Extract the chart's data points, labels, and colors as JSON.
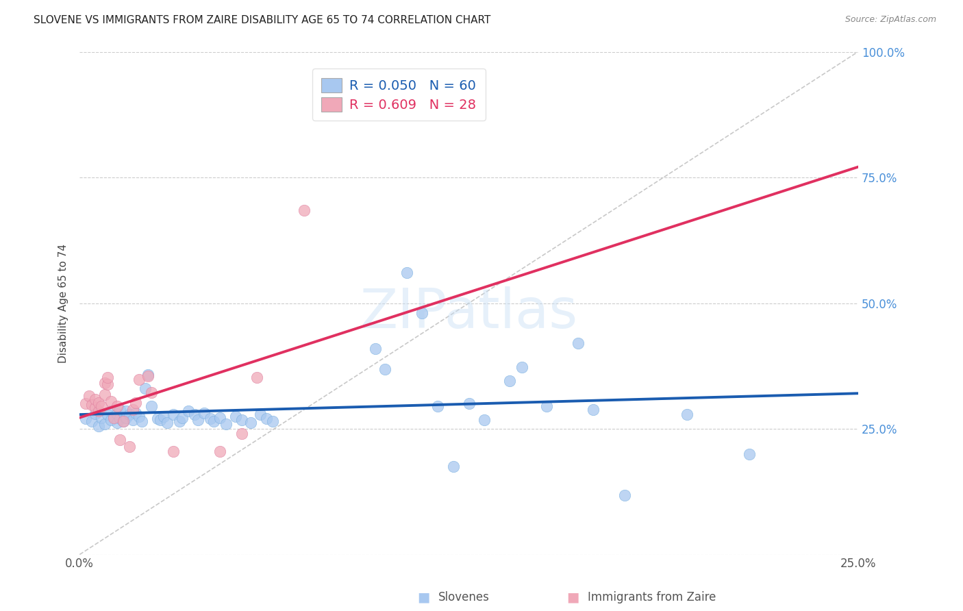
{
  "title": "SLOVENE VS IMMIGRANTS FROM ZAIRE DISABILITY AGE 65 TO 74 CORRELATION CHART",
  "source": "Source: ZipAtlas.com",
  "ylabel": "Disability Age 65 to 74",
  "xmin": 0.0,
  "xmax": 0.25,
  "ymin": 0.0,
  "ymax": 1.0,
  "ytick_values": [
    0.0,
    0.25,
    0.5,
    0.75,
    1.0
  ],
  "ytick_labels": [
    "",
    "25.0%",
    "50.0%",
    "75.0%",
    "100.0%"
  ],
  "xtick_values": [
    0.0,
    0.05,
    0.1,
    0.15,
    0.2,
    0.25
  ],
  "xtick_labels": [
    "0.0%",
    "",
    "",
    "",
    "",
    "25.0%"
  ],
  "slovene_color": "#a8c8f0",
  "zaire_color": "#f0a8b8",
  "slovene_line_color": "#1a5cb0",
  "zaire_line_color": "#e03060",
  "diagonal_color": "#bbbbbb",
  "watermark": "ZIPatlas",
  "slovene_points": [
    [
      0.002,
      0.27
    ],
    [
      0.004,
      0.265
    ],
    [
      0.005,
      0.28
    ],
    [
      0.006,
      0.255
    ],
    [
      0.007,
      0.272
    ],
    [
      0.008,
      0.26
    ],
    [
      0.009,
      0.278
    ],
    [
      0.01,
      0.268
    ],
    [
      0.01,
      0.285
    ],
    [
      0.011,
      0.275
    ],
    [
      0.012,
      0.262
    ],
    [
      0.012,
      0.28
    ],
    [
      0.013,
      0.27
    ],
    [
      0.013,
      0.288
    ],
    [
      0.014,
      0.265
    ],
    [
      0.015,
      0.272
    ],
    [
      0.015,
      0.285
    ],
    [
      0.016,
      0.278
    ],
    [
      0.017,
      0.268
    ],
    [
      0.018,
      0.282
    ],
    [
      0.019,
      0.275
    ],
    [
      0.02,
      0.265
    ],
    [
      0.021,
      0.33
    ],
    [
      0.022,
      0.358
    ],
    [
      0.023,
      0.295
    ],
    [
      0.025,
      0.27
    ],
    [
      0.026,
      0.268
    ],
    [
      0.027,
      0.275
    ],
    [
      0.028,
      0.262
    ],
    [
      0.03,
      0.278
    ],
    [
      0.032,
      0.265
    ],
    [
      0.033,
      0.272
    ],
    [
      0.035,
      0.285
    ],
    [
      0.037,
      0.278
    ],
    [
      0.038,
      0.268
    ],
    [
      0.04,
      0.282
    ],
    [
      0.042,
      0.27
    ],
    [
      0.043,
      0.265
    ],
    [
      0.045,
      0.272
    ],
    [
      0.047,
      0.26
    ],
    [
      0.05,
      0.275
    ],
    [
      0.052,
      0.268
    ],
    [
      0.055,
      0.262
    ],
    [
      0.058,
      0.278
    ],
    [
      0.06,
      0.27
    ],
    [
      0.062,
      0.265
    ],
    [
      0.095,
      0.41
    ],
    [
      0.098,
      0.368
    ],
    [
      0.105,
      0.56
    ],
    [
      0.11,
      0.48
    ],
    [
      0.115,
      0.295
    ],
    [
      0.12,
      0.175
    ],
    [
      0.125,
      0.3
    ],
    [
      0.13,
      0.268
    ],
    [
      0.138,
      0.345
    ],
    [
      0.142,
      0.372
    ],
    [
      0.15,
      0.295
    ],
    [
      0.16,
      0.42
    ],
    [
      0.165,
      0.288
    ],
    [
      0.175,
      0.118
    ],
    [
      0.195,
      0.278
    ],
    [
      0.215,
      0.2
    ]
  ],
  "zaire_points": [
    [
      0.002,
      0.3
    ],
    [
      0.003,
      0.315
    ],
    [
      0.004,
      0.298
    ],
    [
      0.005,
      0.292
    ],
    [
      0.005,
      0.308
    ],
    [
      0.006,
      0.285
    ],
    [
      0.006,
      0.302
    ],
    [
      0.007,
      0.295
    ],
    [
      0.008,
      0.318
    ],
    [
      0.008,
      0.342
    ],
    [
      0.009,
      0.338
    ],
    [
      0.009,
      0.352
    ],
    [
      0.01,
      0.305
    ],
    [
      0.011,
      0.272
    ],
    [
      0.012,
      0.295
    ],
    [
      0.013,
      0.228
    ],
    [
      0.014,
      0.265
    ],
    [
      0.016,
      0.215
    ],
    [
      0.017,
      0.288
    ],
    [
      0.018,
      0.302
    ],
    [
      0.019,
      0.348
    ],
    [
      0.022,
      0.355
    ],
    [
      0.023,
      0.322
    ],
    [
      0.03,
      0.205
    ],
    [
      0.045,
      0.205
    ],
    [
      0.052,
      0.24
    ],
    [
      0.057,
      0.352
    ],
    [
      0.072,
      0.685
    ]
  ]
}
